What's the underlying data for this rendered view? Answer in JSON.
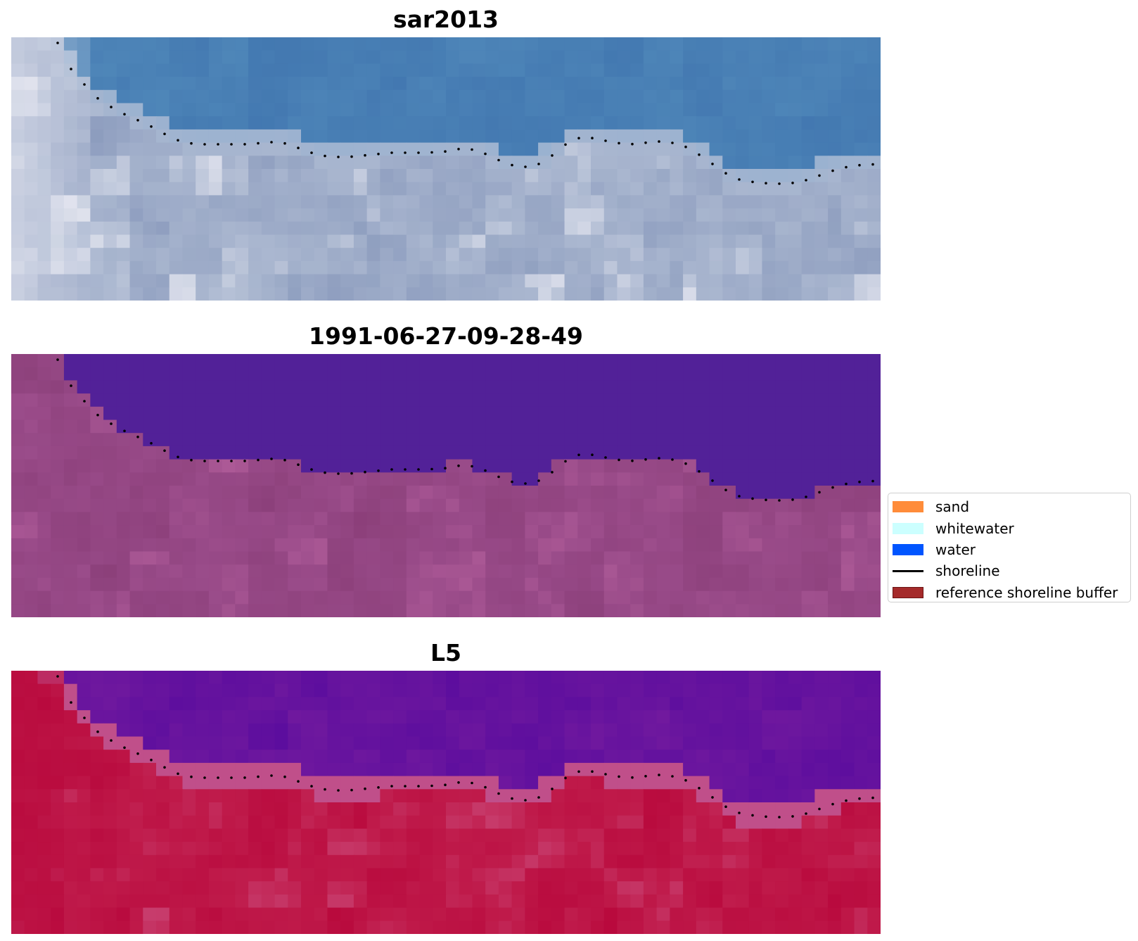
{
  "panels": [
    {
      "title": "sar2013",
      "palette": "rgb",
      "colors": {
        "sea": "#4277b0",
        "seaAlt": "#4f87b9",
        "land": "#a9b6cf",
        "landLight": "#e8e9f2",
        "landDark": "#8b9bbd",
        "band": "#9ab2d0"
      }
    },
    {
      "title": "1991-06-27-09-28-49",
      "palette": "classified",
      "colors": {
        "sea": "#522198",
        "seaAlt": "#522198",
        "land": "#984a88",
        "landLight": "#b45f9c",
        "landDark": "#8b3f79",
        "band": "#9a4d8a"
      }
    },
    {
      "title": "L5",
      "palette": "index",
      "colors": {
        "sea": "#5a0c9e",
        "seaAlt": "#721a9e",
        "land": "#bf1a4a",
        "landLight": "#c84070",
        "landDark": "#b8083c",
        "band": "#c04f8a"
      }
    }
  ],
  "legend": {
    "items": [
      {
        "label": "sand",
        "kind": "patch",
        "color": "#ff8c3a"
      },
      {
        "label": "whitewater",
        "kind": "patch",
        "color": "#ccffff"
      },
      {
        "label": "water",
        "kind": "patch",
        "color": "#0055ff"
      },
      {
        "label": "shoreline",
        "kind": "line",
        "color": "#000000"
      },
      {
        "label": "reference shoreline buffer",
        "kind": "patch",
        "color": "#a52a2a",
        "edge": "#6b1414"
      }
    ]
  }
}
